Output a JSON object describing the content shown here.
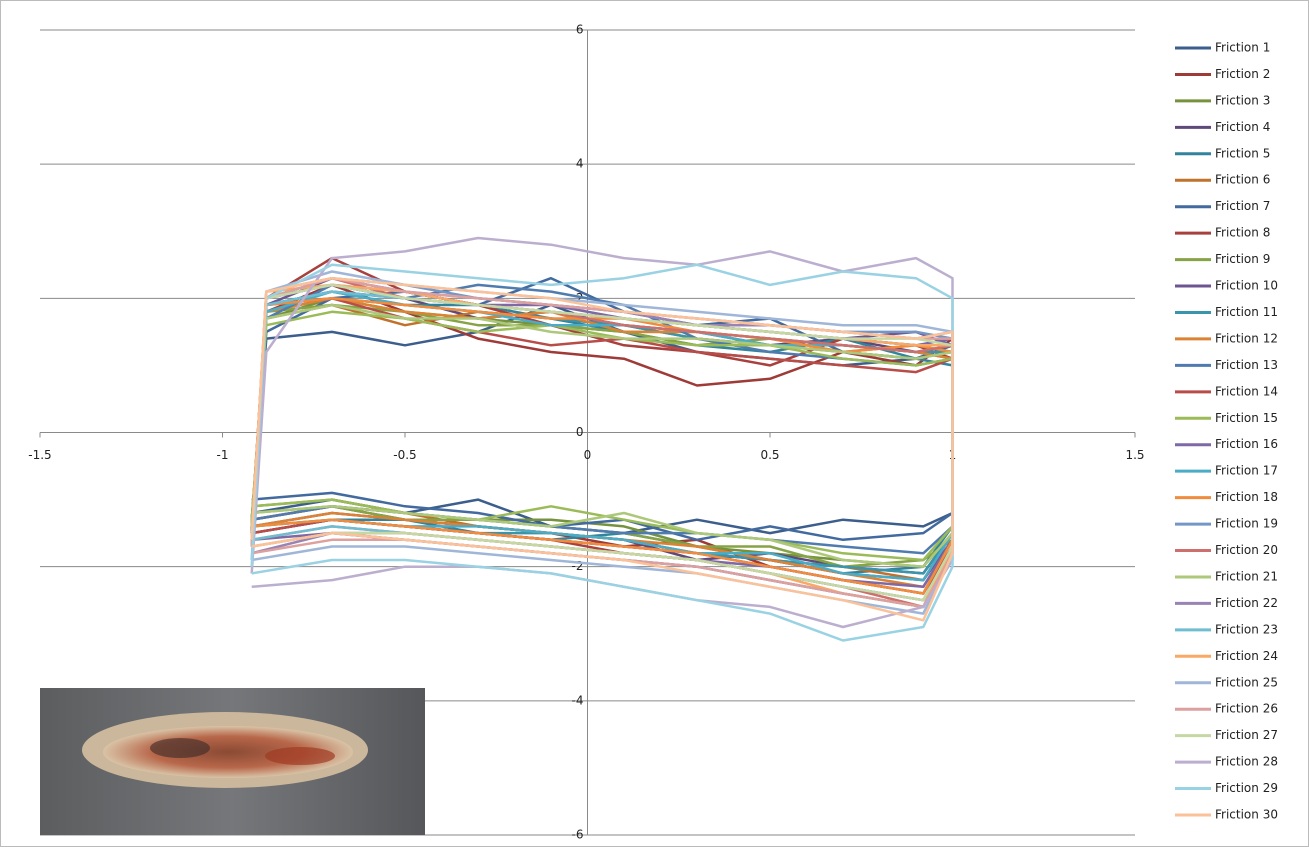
{
  "chart_data": {
    "type": "line",
    "x": [
      -0.92,
      -0.88,
      -0.7,
      -0.5,
      -0.3,
      -0.1,
      0.1,
      0.3,
      0.5,
      0.7,
      0.9,
      1.0,
      1.0,
      0.92,
      0.7,
      0.5,
      0.3,
      0.1,
      -0.1,
      -0.3,
      -0.5,
      -0.7,
      -0.92
    ],
    "xlim": [
      -1.5,
      1.5
    ],
    "xticks": [
      -1.5,
      -1,
      -0.5,
      0,
      0.5,
      1,
      1.5
    ],
    "ylim": [
      -6,
      6
    ],
    "yticks": [
      -6,
      -4,
      -2,
      0,
      2,
      4,
      6
    ],
    "grid": true,
    "legend": "right",
    "series": [
      {
        "name": "Friction 1",
        "color": "#3b5e8c",
        "values": [
          -1.3,
          1.4,
          1.5,
          1.3,
          1.5,
          1.9,
          1.5,
          1.2,
          1.1,
          1.0,
          1.1,
          1.3,
          -1.2,
          -1.4,
          -1.3,
          -1.5,
          -1.3,
          -1.5,
          -1.4,
          -1.0,
          -1.2,
          -1.0,
          -1.2
        ]
      },
      {
        "name": "Friction 2",
        "color": "#9e3a37",
        "values": [
          -1.4,
          1.8,
          2.2,
          1.8,
          1.4,
          1.2,
          1.1,
          0.7,
          0.8,
          1.2,
          1.0,
          1.4,
          -1.6,
          -2.4,
          -2.2,
          -2.0,
          -1.6,
          -1.7,
          -1.5,
          -1.4,
          -1.3,
          -1.1,
          -1.3
        ]
      },
      {
        "name": "Friction 3",
        "color": "#76923c",
        "values": [
          -1.5,
          1.7,
          2.0,
          1.8,
          1.7,
          1.6,
          1.5,
          1.5,
          1.4,
          1.3,
          1.2,
          1.3,
          -1.5,
          -2.0,
          -1.9,
          -1.8,
          -1.7,
          -1.4,
          -1.3,
          -1.3,
          -1.2,
          -1.0,
          -1.1
        ]
      },
      {
        "name": "Friction 4",
        "color": "#5f497a",
        "values": [
          -1.4,
          1.9,
          2.1,
          2.0,
          1.7,
          1.8,
          1.6,
          1.5,
          1.3,
          1.4,
          1.2,
          1.1,
          -1.5,
          -2.1,
          -2.0,
          -1.8,
          -1.9,
          -1.6,
          -1.5,
          -1.4,
          -1.3,
          -1.2,
          -1.4
        ]
      },
      {
        "name": "Friction 5",
        "color": "#31849b",
        "values": [
          -1.6,
          1.8,
          2.0,
          1.9,
          1.9,
          1.7,
          1.5,
          1.3,
          1.2,
          1.4,
          1.1,
          1.0,
          -1.4,
          -2.0,
          -2.1,
          -1.9,
          -1.7,
          -1.5,
          -1.6,
          -1.5,
          -1.3,
          -1.3,
          -1.5
        ]
      },
      {
        "name": "Friction 6",
        "color": "#c0712c",
        "values": [
          -1.5,
          1.7,
          1.9,
          1.6,
          1.8,
          1.7,
          1.6,
          1.4,
          1.3,
          1.2,
          1.3,
          1.2,
          -1.5,
          -2.2,
          -2.0,
          -1.9,
          -1.8,
          -1.6,
          -1.5,
          -1.4,
          -1.2,
          -1.1,
          -1.3
        ]
      },
      {
        "name": "Friction 7",
        "color": "#426a9e",
        "values": [
          -1.3,
          1.5,
          2.0,
          2.1,
          1.9,
          2.3,
          1.8,
          1.6,
          1.7,
          1.2,
          1.1,
          1.3,
          -1.2,
          -1.5,
          -1.6,
          -1.4,
          -1.6,
          -1.3,
          -1.4,
          -1.2,
          -1.1,
          -0.9,
          -1.0
        ]
      },
      {
        "name": "Friction 8",
        "color": "#a8403d",
        "values": [
          -1.5,
          2.0,
          2.6,
          2.1,
          1.9,
          1.6,
          1.3,
          1.2,
          1.0,
          1.4,
          1.3,
          1.1,
          -1.7,
          -2.5,
          -2.3,
          -2.1,
          -1.9,
          -1.8,
          -1.6,
          -1.5,
          -1.4,
          -1.3,
          -1.5
        ]
      },
      {
        "name": "Friction 9",
        "color": "#86a346",
        "values": [
          -1.4,
          1.8,
          1.9,
          1.8,
          1.6,
          1.6,
          1.5,
          1.3,
          1.4,
          1.2,
          1.1,
          1.2,
          -1.6,
          -1.9,
          -2.0,
          -1.7,
          -1.7,
          -1.5,
          -1.4,
          -1.3,
          -1.3,
          -1.1,
          -1.2
        ]
      },
      {
        "name": "Friction 10",
        "color": "#6c5590",
        "values": [
          -1.5,
          1.9,
          2.3,
          2.1,
          1.9,
          1.8,
          1.7,
          1.6,
          1.5,
          1.4,
          1.5,
          1.3,
          -1.6,
          -2.2,
          -2.1,
          -1.9,
          -1.8,
          -1.7,
          -1.6,
          -1.5,
          -1.4,
          -1.3,
          -1.5
        ]
      },
      {
        "name": "Friction 11",
        "color": "#3895ab",
        "values": [
          -1.6,
          1.9,
          2.1,
          1.9,
          1.8,
          1.7,
          1.6,
          1.4,
          1.3,
          1.3,
          1.2,
          1.2,
          -1.5,
          -2.1,
          -2.0,
          -1.9,
          -1.8,
          -1.6,
          -1.5,
          -1.5,
          -1.4,
          -1.3,
          -1.4
        ]
      },
      {
        "name": "Friction 12",
        "color": "#dc8235",
        "values": [
          -1.5,
          1.8,
          2.0,
          1.8,
          1.7,
          1.8,
          1.5,
          1.5,
          1.4,
          1.3,
          1.2,
          1.1,
          -1.6,
          -2.3,
          -2.1,
          -1.9,
          -1.7,
          -1.6,
          -1.5,
          -1.4,
          -1.3,
          -1.2,
          -1.4
        ]
      },
      {
        "name": "Friction 13",
        "color": "#4f7bae",
        "values": [
          -1.4,
          1.7,
          2.2,
          2.0,
          2.2,
          2.1,
          1.9,
          1.4,
          1.2,
          1.1,
          1.0,
          1.1,
          -1.4,
          -1.8,
          -1.7,
          -1.6,
          -1.5,
          -1.5,
          -1.4,
          -1.3,
          -1.2,
          -1.1,
          -1.3
        ]
      },
      {
        "name": "Friction 14",
        "color": "#b84c48",
        "values": [
          -1.5,
          1.9,
          2.0,
          1.7,
          1.5,
          1.3,
          1.4,
          1.2,
          1.1,
          1.0,
          0.9,
          1.1,
          -1.7,
          -2.4,
          -2.2,
          -2.0,
          -1.8,
          -1.7,
          -1.6,
          -1.5,
          -1.4,
          -1.3,
          -1.5
        ]
      },
      {
        "name": "Friction 15",
        "color": "#9bbb59",
        "values": [
          -1.3,
          1.6,
          1.8,
          1.7,
          1.5,
          1.6,
          1.4,
          1.3,
          1.3,
          1.1,
          1.0,
          1.1,
          -1.4,
          -1.9,
          -1.8,
          -1.6,
          -1.5,
          -1.3,
          -1.1,
          -1.3,
          -1.2,
          -1.0,
          -1.1
        ]
      },
      {
        "name": "Friction 16",
        "color": "#7e68a6",
        "values": [
          -1.6,
          2.0,
          2.2,
          2.0,
          1.9,
          1.9,
          1.7,
          1.6,
          1.5,
          1.4,
          1.3,
          1.4,
          -1.6,
          -2.3,
          -2.2,
          -2.0,
          -1.9,
          -1.8,
          -1.7,
          -1.6,
          -1.5,
          -1.5,
          -1.6
        ]
      },
      {
        "name": "Friction 17",
        "color": "#4bacc6",
        "values": [
          -1.5,
          1.8,
          2.1,
          1.9,
          1.8,
          1.6,
          1.6,
          1.5,
          1.3,
          1.3,
          1.2,
          1.3,
          -1.5,
          -2.2,
          -2.1,
          -1.8,
          -1.8,
          -1.6,
          -1.5,
          -1.4,
          -1.4,
          -1.3,
          -1.4
        ]
      },
      {
        "name": "Friction 18",
        "color": "#f08c3e",
        "values": [
          -1.4,
          1.9,
          2.0,
          1.9,
          1.8,
          1.7,
          1.7,
          1.5,
          1.4,
          1.2,
          1.3,
          1.2,
          -1.6,
          -2.4,
          -2.2,
          -2.0,
          -1.8,
          -1.7,
          -1.6,
          -1.5,
          -1.4,
          -1.3,
          -1.4
        ]
      },
      {
        "name": "Friction 19",
        "color": "#7396c6",
        "values": [
          -1.7,
          2.0,
          2.3,
          2.2,
          2.0,
          1.9,
          1.8,
          1.7,
          1.6,
          1.5,
          1.5,
          1.4,
          -1.7,
          -2.6,
          -2.4,
          -2.2,
          -2.0,
          -1.9,
          -1.8,
          -1.7,
          -1.6,
          -1.5,
          -1.7
        ]
      },
      {
        "name": "Friction 20",
        "color": "#cd706d",
        "values": [
          -1.6,
          2.1,
          2.3,
          2.0,
          1.9,
          1.8,
          1.6,
          1.5,
          1.4,
          1.3,
          1.2,
          1.3,
          -1.7,
          -2.6,
          -2.3,
          -2.1,
          -1.9,
          -1.8,
          -1.7,
          -1.6,
          -1.5,
          -1.4,
          -1.6
        ]
      },
      {
        "name": "Friction 21",
        "color": "#adc87a",
        "values": [
          -1.4,
          1.7,
          1.9,
          1.7,
          1.7,
          1.5,
          1.4,
          1.4,
          1.3,
          1.2,
          1.1,
          1.2,
          -1.5,
          -2.0,
          -1.9,
          -1.6,
          -1.5,
          -1.2,
          -1.4,
          -1.3,
          -1.2,
          -1.1,
          -1.2
        ]
      },
      {
        "name": "Friction 22",
        "color": "#9983b5",
        "values": [
          -1.7,
          2.0,
          2.2,
          2.1,
          2.0,
          1.9,
          1.8,
          1.6,
          1.6,
          1.5,
          1.4,
          1.5,
          -1.8,
          -2.6,
          -2.4,
          -2.2,
          -2.0,
          -1.9,
          -1.8,
          -1.7,
          -1.6,
          -1.5,
          -1.8
        ]
      },
      {
        "name": "Friction 23",
        "color": "#6fbdd1",
        "values": [
          -1.6,
          1.9,
          2.1,
          2.0,
          1.9,
          1.8,
          1.7,
          1.6,
          1.5,
          1.4,
          1.3,
          1.3,
          -1.7,
          -2.5,
          -2.3,
          -2.1,
          -1.9,
          -1.8,
          -1.7,
          -1.6,
          -1.5,
          -1.4,
          -1.6
        ]
      },
      {
        "name": "Friction 24",
        "color": "#f9a866",
        "values": [
          -1.6,
          2.1,
          2.2,
          2.1,
          1.9,
          1.8,
          1.7,
          1.6,
          1.5,
          1.4,
          1.3,
          1.3,
          -1.7,
          -2.6,
          -2.4,
          -2.1,
          -1.9,
          -1.8,
          -1.7,
          -1.6,
          -1.5,
          -1.5,
          -1.7
        ]
      },
      {
        "name": "Friction 25",
        "color": "#9fb6d8",
        "values": [
          -1.9,
          2.1,
          2.4,
          2.2,
          2.1,
          2.0,
          1.9,
          1.8,
          1.7,
          1.6,
          1.6,
          1.5,
          -1.8,
          -2.7,
          -2.5,
          -2.3,
          -2.1,
          -2.0,
          -1.9,
          -1.8,
          -1.7,
          -1.7,
          -1.9
        ]
      },
      {
        "name": "Friction 26",
        "color": "#dca09e",
        "values": [
          -1.7,
          2.0,
          2.3,
          2.1,
          2.0,
          1.9,
          1.8,
          1.7,
          1.6,
          1.5,
          1.4,
          1.4,
          -1.8,
          -2.6,
          -2.4,
          -2.2,
          -2.0,
          -1.9,
          -1.8,
          -1.7,
          -1.6,
          -1.6,
          -1.8
        ]
      },
      {
        "name": "Friction 27",
        "color": "#c5d8a4",
        "values": [
          -1.6,
          2.0,
          2.2,
          2.0,
          1.9,
          1.8,
          1.7,
          1.6,
          1.5,
          1.4,
          1.4,
          1.3,
          -1.7,
          -2.5,
          -2.3,
          -2.1,
          -1.9,
          -1.8,
          -1.7,
          -1.6,
          -1.5,
          -1.5,
          -1.7
        ]
      },
      {
        "name": "Friction 28",
        "color": "#bcaecf",
        "values": [
          -2.1,
          1.2,
          2.6,
          2.7,
          2.9,
          2.8,
          2.6,
          2.5,
          2.7,
          2.4,
          2.6,
          2.3,
          -1.9,
          -2.6,
          -2.9,
          -2.6,
          -2.5,
          -2.3,
          -2.1,
          -2.0,
          -2.0,
          -2.2,
          -2.3
        ]
      },
      {
        "name": "Friction 29",
        "color": "#99d2e3",
        "values": [
          -2.0,
          2.0,
          2.5,
          2.4,
          2.3,
          2.2,
          2.3,
          2.5,
          2.2,
          2.4,
          2.3,
          2.0,
          -2.0,
          -2.9,
          -3.1,
          -2.7,
          -2.5,
          -2.3,
          -2.1,
          -2.0,
          -1.9,
          -1.9,
          -2.1
        ]
      },
      {
        "name": "Friction 30",
        "color": "#fbc299",
        "values": [
          -1.6,
          2.1,
          2.3,
          2.2,
          2.1,
          2.0,
          1.8,
          1.7,
          1.6,
          1.5,
          1.4,
          1.5,
          -1.8,
          -2.8,
          -2.5,
          -2.3,
          -2.1,
          -1.9,
          -1.8,
          -1.7,
          -1.6,
          -1.5,
          -1.7
        ]
      }
    ]
  }
}
